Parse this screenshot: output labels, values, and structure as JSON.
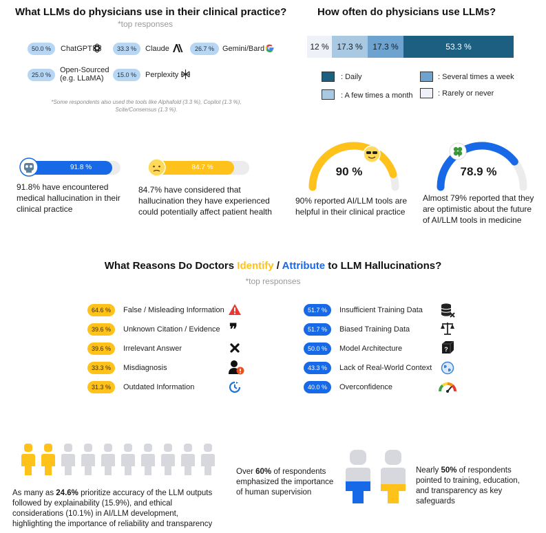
{
  "tools_section": {
    "title": "What LLMs do physicians use in their clinical practice?",
    "subtitle": "*top responses",
    "tools": [
      {
        "pct": "50.0 %",
        "name": "ChatGPT",
        "icon": "openai-icon"
      },
      {
        "pct": "33.3 %",
        "name": "Claude",
        "icon": "anthropic-icon"
      },
      {
        "pct": "26.7 %",
        "name": "Gemini/Bard",
        "icon": "google-icon"
      },
      {
        "pct": "25.0 %",
        "name": "Open-Sourced",
        "name2": "(e.g. LLaMA)",
        "icon": "none"
      },
      {
        "pct": "15.0 %",
        "name": "Perplexity",
        "icon": "perplexity-icon"
      }
    ],
    "note_line1": "*Some respondents also used the tools like Alphafold (3.3 %), Copilot (1.3 %),",
    "note_line2": "Scite/Consensus (1.3 %)."
  },
  "frequency_section": {
    "title": "How often do physicians use LLMs?",
    "legend": [
      {
        "label": ": Daily",
        "color": "#1d5f80"
      },
      {
        "label": ": Several times a week",
        "color": "#6ea3cf"
      },
      {
        "label": ": A few times a month",
        "color": "#a9c9e3"
      },
      {
        "label": ": Rarely or never",
        "color": "#eef2f8"
      }
    ]
  },
  "stats": {
    "hallucination_encountered": {
      "value_label": "91.8 %",
      "value": 91.8,
      "caption_line1": "91.8% have encountered",
      "caption_line2": "medical hallucination in their",
      "caption_line3": "clinical practice"
    },
    "hallucination_affect": {
      "value_label": "84.7 %",
      "value": 84.7,
      "caption_line1": "84.7% have considered that",
      "caption_line2": "hallucination they have experienced",
      "caption_line3": "could potentially affect patient health"
    },
    "helpful": {
      "value_label": "90 %",
      "value": 90,
      "caption_line1": "90% reported AI/LLM tools are",
      "caption_line2": "helpful in their clinical practice"
    },
    "optimistic": {
      "value_label": "78.9 %",
      "value": 78.9,
      "caption_line1": "Almost 79% reported that they",
      "caption_line2": "are optimistic about the future",
      "caption_line3": "of AI/LLM tools in medicine"
    }
  },
  "reasons_section": {
    "title_part1": "What Reasons Do Doctors ",
    "title_identify": "Identify",
    "title_sep": " / ",
    "title_attribute": "Attribute",
    "title_part2": " to LLM Hallucinations?",
    "subtitle": "*top responses",
    "identify": [
      {
        "pct": "64.6 %",
        "label": "False / Misleading Information",
        "icon": "warning-icon"
      },
      {
        "pct": "39.6 %",
        "label": "Unknown Citation / Evidence",
        "icon": "quote-icon"
      },
      {
        "pct": "39.6 %",
        "label": "Irrelevant Answer",
        "icon": "x-mark-icon"
      },
      {
        "pct": "33.3 %",
        "label": "Misdiagnosis",
        "icon": "person-alert-icon"
      },
      {
        "pct": "31.3 %",
        "label": "Outdated Information",
        "icon": "clock-icon"
      }
    ],
    "attribute": [
      {
        "pct": "51.7 %",
        "label": "Insufficient Training Data",
        "icon": "database-x-icon"
      },
      {
        "pct": "51.7 %",
        "label": "Biased Training Data",
        "icon": "scale-icon"
      },
      {
        "pct": "50.0 %",
        "label": "Model Architecture",
        "icon": "cube-question-icon"
      },
      {
        "pct": "43.3 %",
        "label": "Lack of Real-World Context",
        "icon": "globe-icon"
      },
      {
        "pct": "40.0 %",
        "label": "Overconfidence",
        "icon": "gauge-icon"
      }
    ]
  },
  "bottom": {
    "priority_line1_pre": "As many as ",
    "priority_line1_bold": "24.6%",
    "priority_line1_post": " prioritize accuracy of the LLM outputs",
    "priority_line2": "followed by explainability (15.9%), and ethical",
    "priority_line3": "considerations (10.1%) in AI/LLM development,",
    "priority_line4": "highlighting the importance of reliability and transparency",
    "supervision_pre": "Over ",
    "supervision_bold": "60%",
    "supervision_post": " of respondents",
    "supervision_line2": "emphasized the importance",
    "supervision_line3": "of human supervision",
    "safeguards_pre": "Nearly ",
    "safeguards_bold": "50%",
    "safeguards_post": " of respondents",
    "safeguards_line2": "pointed to training, education,",
    "safeguards_line3": "and transparency as key",
    "safeguards_line4": "safeguards"
  },
  "colors": {
    "yellow": "#ffc21a",
    "blue": "#1769e8",
    "grey": "#d7d8de",
    "light_blue": "#b7d6f4"
  },
  "chart_data": [
    {
      "type": "bar",
      "title": "How often do physicians use LLMs?",
      "orientation": "horizontal-stacked",
      "series": [
        {
          "name": "Rarely or never",
          "value": 12,
          "label": "12 %"
        },
        {
          "name": "A few times a month",
          "value": 17.3,
          "label": "17.3 %"
        },
        {
          "name": "Several times a week",
          "value": 17.3,
          "label": "17.3 %"
        },
        {
          "name": "Daily",
          "value": 53.3,
          "label": "53.3 %"
        }
      ],
      "legend": "below"
    },
    {
      "type": "bar",
      "title": "What LLMs do physicians use in their clinical practice?",
      "categories": [
        "ChatGPT",
        "Claude",
        "Gemini/Bard",
        "Open-Sourced (e.g. LLaMA)",
        "Perplexity"
      ],
      "values": [
        50.0,
        33.3,
        26.7,
        25.0,
        15.0
      ]
    },
    {
      "type": "bar",
      "title": "What Reasons Do Doctors Identify / Attribute to LLM Hallucinations?",
      "series": [
        {
          "name": "Identify",
          "categories": [
            "False / Misleading Information",
            "Unknown Citation / Evidence",
            "Irrelevant Answer",
            "Misdiagnosis",
            "Outdated Information"
          ],
          "values": [
            64.6,
            39.6,
            39.6,
            33.3,
            31.3
          ]
        },
        {
          "name": "Attribute",
          "categories": [
            "Insufficient Training Data",
            "Biased Training Data",
            "Model Architecture",
            "Lack of Real-World Context",
            "Overconfidence"
          ],
          "values": [
            51.7,
            51.7,
            50.0,
            43.3,
            40.0
          ]
        }
      ]
    },
    {
      "type": "pie",
      "categories": [
        "helpful",
        "not helpful"
      ],
      "values": [
        90,
        10
      ]
    },
    {
      "type": "pie",
      "categories": [
        "optimistic",
        "not optimistic"
      ],
      "values": [
        78.9,
        21.1
      ]
    }
  ]
}
